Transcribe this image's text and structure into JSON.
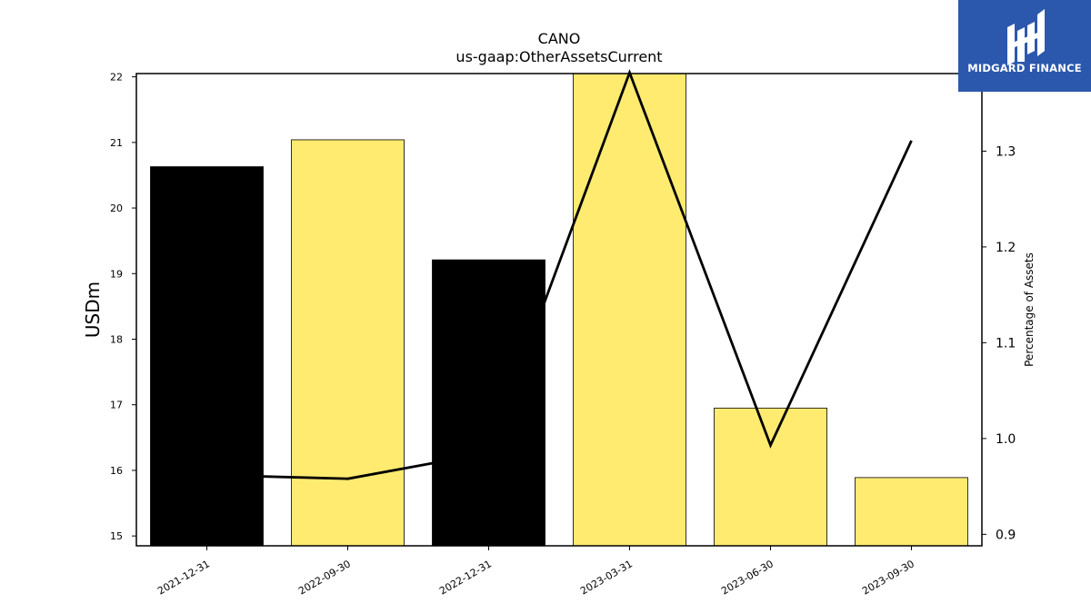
{
  "chart_data": {
    "type": "bar",
    "title": "CANO",
    "subtitle": "us-gaap:OtherAssetsCurrent",
    "ylabel": "USDm",
    "y2label": "Percentage of Assets",
    "categories": [
      "2021-12-31",
      "2022-09-30",
      "2022-12-31",
      "2023-03-31",
      "2023-06-30",
      "2023-09-30"
    ],
    "series": [
      {
        "type": "bar",
        "values": [
          20.63,
          21.04,
          19.21,
          22.05,
          16.95,
          15.89
        ],
        "colors": [
          "#000000",
          "#ffeb70",
          "#000000",
          "#ffeb70",
          "#ffeb70",
          "#ffeb70"
        ]
      },
      {
        "type": "line",
        "axis": "right",
        "values": [
          0.962,
          0.958,
          0.985,
          1.382,
          0.993,
          1.311
        ],
        "color": "#000000"
      }
    ],
    "ylim": [
      14.85,
      22.05
    ],
    "y2lim": [
      0.888,
      1.381
    ],
    "yticks": [
      15,
      16,
      17,
      18,
      19,
      20,
      21,
      22
    ],
    "y2ticks": [
      "0.9",
      "1.0",
      "1.1",
      "1.2",
      "1.3"
    ],
    "grid": false,
    "legend": "none"
  },
  "logo": {
    "text": "MIDGARD FINANCE",
    "color": "#2b58ad"
  }
}
